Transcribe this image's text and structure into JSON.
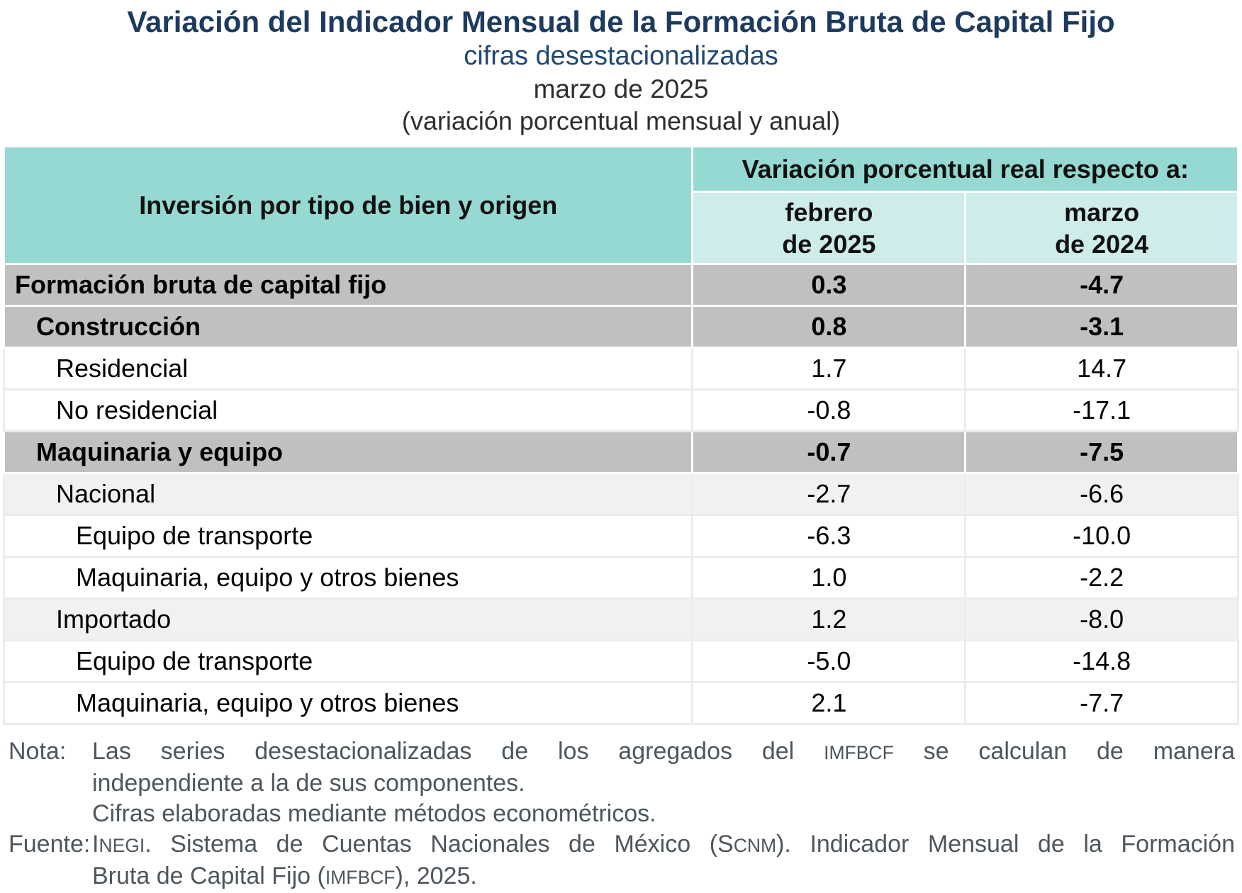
{
  "header": {
    "title": "Variación del Indicador Mensual de la Formación Bruta de Capital Fijo",
    "subtitle": "cifras desestacionalizadas",
    "period": "marzo de 2025",
    "measure": "(variación porcentual mensual y anual)"
  },
  "table": {
    "row_header": "Inversión por tipo de bien y origen",
    "group_header": "Variación porcentual real respecto a:",
    "col_headers": [
      {
        "line1": "febrero",
        "line2": "de 2025"
      },
      {
        "line1": "marzo",
        "line2": "de 2024"
      }
    ],
    "rows": [
      {
        "label": "Formación bruta de capital fijo",
        "indent": 0,
        "style": "gray",
        "feb2025": "0.3",
        "mar2024": "-4.7"
      },
      {
        "label": "Construcción",
        "indent": 1,
        "style": "gray",
        "feb2025": "0.8",
        "mar2024": "-3.1"
      },
      {
        "label": "Residencial",
        "indent": 2,
        "style": "white",
        "feb2025": "1.7",
        "mar2024": "14.7"
      },
      {
        "label": "No residencial",
        "indent": 2,
        "style": "white",
        "feb2025": "-0.8",
        "mar2024": "-17.1"
      },
      {
        "label": "Maquinaria y equipo",
        "indent": 1,
        "style": "gray",
        "feb2025": "-0.7",
        "mar2024": "-7.5"
      },
      {
        "label": "Nacional",
        "indent": 2,
        "style": "lightgray",
        "feb2025": "-2.7",
        "mar2024": "-6.6"
      },
      {
        "label": "Equipo de transporte",
        "indent": 3,
        "style": "white",
        "feb2025": "-6.3",
        "mar2024": "-10.0"
      },
      {
        "label": "Maquinaria, equipo y otros bienes",
        "indent": 3,
        "style": "white",
        "feb2025": "1.0",
        "mar2024": "-2.2"
      },
      {
        "label": "Importado",
        "indent": 2,
        "style": "lightgray",
        "feb2025": "1.2",
        "mar2024": "-8.0"
      },
      {
        "label": "Equipo de transporte",
        "indent": 3,
        "style": "white",
        "feb2025": "-5.0",
        "mar2024": "-14.8"
      },
      {
        "label": "Maquinaria, equipo y otros bienes",
        "indent": 3,
        "style": "white",
        "feb2025": "2.1",
        "mar2024": "-7.7"
      }
    ]
  },
  "notes": [
    {
      "label": "Nota:",
      "paragraphs": [
        {
          "lines": [
            {
              "justify": true,
              "segments": [
                {
                  "t": "Las series desestacionalizadas de los agregados del "
                },
                {
                  "t": "IMFBCF",
                  "sc": true
                },
                {
                  "t": " se calculan de manera"
                }
              ]
            },
            {
              "justify": false,
              "segments": [
                {
                  "t": "independiente a la de sus componentes."
                }
              ]
            }
          ]
        },
        {
          "lines": [
            {
              "justify": false,
              "segments": [
                {
                  "t": "Cifras elaboradas mediante métodos econométricos."
                }
              ]
            }
          ]
        }
      ]
    },
    {
      "label": "Fuente:",
      "paragraphs": [
        {
          "lines": [
            {
              "justify": true,
              "segments": [
                {
                  "t": "I"
                },
                {
                  "t": "NEGI",
                  "sc": true
                },
                {
                  "t": ". Sistema de Cuentas Nacionales de México (S"
                },
                {
                  "t": "CNM",
                  "sc": true
                },
                {
                  "t": "). Indicador Mensual de la Formación"
                }
              ]
            },
            {
              "justify": false,
              "segments": [
                {
                  "t": "Bruta de Capital Fijo ("
                },
                {
                  "t": "IMFBCF",
                  "sc": true
                },
                {
                  "t": "), 2025."
                }
              ]
            }
          ]
        }
      ]
    }
  ],
  "colors": {
    "title_navy": "#1d3a5f",
    "subtitle_navy": "#21486e",
    "header_teal": "#96d8d2",
    "subheader_teal": "#cdecea",
    "group_row_gray": "#c0c0c0",
    "subgroup_row_gray": "#f1f1f1",
    "note_gray": "#4d565c"
  },
  "chart_data": {
    "type": "table",
    "title": "Variación del Indicador Mensual de la Formación Bruta de Capital Fijo, cifras desestacionalizadas, marzo de 2025 (variación porcentual mensual y anual)",
    "columns": [
      "Inversión por tipo de bien y origen",
      "febrero de 2025",
      "marzo de 2024"
    ],
    "rows": [
      [
        "Formación bruta de capital fijo",
        0.3,
        -4.7
      ],
      [
        "Construcción",
        0.8,
        -3.1
      ],
      [
        "Residencial",
        1.7,
        14.7
      ],
      [
        "No residencial",
        -0.8,
        -17.1
      ],
      [
        "Maquinaria y equipo",
        -0.7,
        -7.5
      ],
      [
        "Nacional",
        -2.7,
        -6.6
      ],
      [
        "Equipo de transporte",
        -6.3,
        -10.0
      ],
      [
        "Maquinaria, equipo y otros bienes",
        1.0,
        -2.2
      ],
      [
        "Importado",
        1.2,
        -8.0
      ],
      [
        "Equipo de transporte",
        -5.0,
        -14.8
      ],
      [
        "Maquinaria, equipo y otros bienes",
        2.1,
        -7.7
      ]
    ]
  }
}
